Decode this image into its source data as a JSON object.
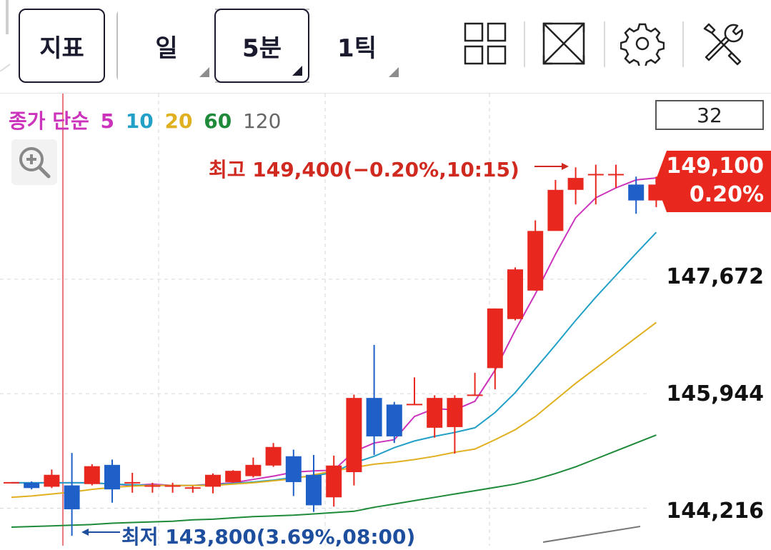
{
  "toolbar": {
    "indicator_label": "지표",
    "periods": [
      {
        "label": "일",
        "selected": false
      },
      {
        "label": "5분",
        "selected": true
      },
      {
        "label": "1틱",
        "selected": false
      }
    ],
    "tools": [
      "grid-layout-icon",
      "expand-icon",
      "gear-icon",
      "tools-icon"
    ]
  },
  "legend": {
    "prefix": "종가 단순",
    "periods": [
      {
        "label": "5",
        "color": "#cc33bb"
      },
      {
        "label": "10",
        "color": "#22a0c8"
      },
      {
        "label": "20",
        "color": "#e0b020"
      },
      {
        "label": "60",
        "color": "#1e8a3a"
      },
      {
        "label": "120",
        "color": "#666666"
      }
    ]
  },
  "count_value": "32",
  "current_price": {
    "price": "149,100",
    "change": "0.20%",
    "color": "#e8281e"
  },
  "annotations": {
    "high": "최고 149,400(−0.20%,10:15)",
    "low": "최저 143,800(3.69%,08:00)"
  },
  "colors": {
    "up": "#e8281e",
    "down": "#1e5fc8",
    "high_text": "#d02a20",
    "low_text": "#1e4f9e"
  },
  "chart_data": {
    "type": "candlestick",
    "y_ticks": [
      147672,
      145944,
      144216
    ],
    "y_tick_labels": [
      "147,672",
      "145,944",
      "144,216"
    ],
    "ylim": [
      143650,
      149600
    ],
    "high": 149400,
    "low": 143800,
    "candles": [
      {
        "o": 144600,
        "c": 144600,
        "h": 144600,
        "l": 144600
      },
      {
        "o": 144600,
        "c": 144520,
        "h": 144620,
        "l": 144500
      },
      {
        "o": 144540,
        "c": 144720,
        "h": 144800,
        "l": 144520
      },
      {
        "o": 144560,
        "c": 144200,
        "h": 145050,
        "l": 143800
      },
      {
        "o": 144580,
        "c": 144850,
        "h": 144880,
        "l": 144560
      },
      {
        "o": 144870,
        "c": 144500,
        "h": 144950,
        "l": 144300
      },
      {
        "o": 144600,
        "c": 144600,
        "h": 144750,
        "l": 144450
      },
      {
        "o": 144550,
        "c": 144550,
        "h": 144600,
        "l": 144450
      },
      {
        "o": 144550,
        "c": 144550,
        "h": 144600,
        "l": 144450
      },
      {
        "o": 144520,
        "c": 144520,
        "h": 144550,
        "l": 144450
      },
      {
        "o": 144540,
        "c": 144720,
        "h": 144740,
        "l": 144440
      },
      {
        "o": 144610,
        "c": 144780,
        "h": 144790,
        "l": 144600
      },
      {
        "o": 144700,
        "c": 144870,
        "h": 144980,
        "l": 144680
      },
      {
        "o": 144860,
        "c": 145140,
        "h": 145200,
        "l": 144840
      },
      {
        "o": 145000,
        "c": 144610,
        "h": 145100,
        "l": 144400
      },
      {
        "o": 144720,
        "c": 144260,
        "h": 145020,
        "l": 144160
      },
      {
        "o": 144380,
        "c": 144860,
        "h": 145010,
        "l": 144240
      },
      {
        "o": 144760,
        "c": 145880,
        "h": 145930,
        "l": 144560
      },
      {
        "o": 145880,
        "c": 145300,
        "h": 146680,
        "l": 145020
      },
      {
        "o": 145780,
        "c": 145300,
        "h": 145820,
        "l": 145200
      },
      {
        "o": 145780,
        "c": 145780,
        "h": 146190,
        "l": 145780
      },
      {
        "o": 145430,
        "c": 145880,
        "h": 145920,
        "l": 145280
      },
      {
        "o": 145440,
        "c": 145880,
        "h": 145920,
        "l": 145040
      },
      {
        "o": 145920,
        "c": 145920,
        "h": 146260,
        "l": 145920
      },
      {
        "o": 146330,
        "c": 147230,
        "h": 147230,
        "l": 146010
      },
      {
        "o": 147070,
        "c": 147820,
        "h": 147850,
        "l": 147050
      },
      {
        "o": 147500,
        "c": 148400,
        "h": 148560,
        "l": 147500
      },
      {
        "o": 148400,
        "c": 149020,
        "h": 149170,
        "l": 148420
      },
      {
        "o": 149020,
        "c": 149200,
        "h": 149360,
        "l": 148800
      },
      {
        "o": 149250,
        "c": 149250,
        "h": 149400,
        "l": 148800
      },
      {
        "o": 149250,
        "c": 149250,
        "h": 149400,
        "l": 149050
      },
      {
        "o": 149100,
        "c": 148860,
        "h": 149220,
        "l": 148660
      },
      {
        "o": 148860,
        "c": 149100,
        "h": 149220,
        "l": 148760
      }
    ],
    "ma": [
      {
        "name": "5",
        "color": "#cc33bb",
        "values": [
          144600,
          144600,
          144600,
          144600,
          144600,
          144580,
          144560,
          144580,
          144560,
          144560,
          144580,
          144600,
          144650,
          144700,
          144760,
          144780,
          144790,
          145070,
          145200,
          145250,
          145600,
          145720,
          145700,
          145830,
          146300,
          146900,
          147450,
          148050,
          148600,
          148900,
          149050,
          149170,
          149200
        ]
      },
      {
        "name": "10",
        "color": "#22a0c8",
        "values": [
          144600,
          144600,
          144600,
          144600,
          144600,
          144580,
          144570,
          144560,
          144560,
          144560,
          144570,
          144590,
          144610,
          144640,
          144680,
          144700,
          144760,
          144900,
          145000,
          145130,
          145230,
          145300,
          145360,
          145430,
          145660,
          145960,
          146320,
          146680,
          147050,
          147400,
          147730,
          148060,
          148380
        ]
      },
      {
        "name": "20",
        "color": "#e0b020",
        "values": [
          144380,
          144400,
          144430,
          144460,
          144500,
          144530,
          144550,
          144560,
          144560,
          144560,
          144560,
          144580,
          144600,
          144630,
          144660,
          144720,
          144780,
          144830,
          144880,
          144910,
          144950,
          145000,
          145060,
          145110,
          145250,
          145400,
          145600,
          145850,
          146100,
          146330,
          146560,
          146790,
          147020
        ]
      },
      {
        "name": "60",
        "color": "#1e8a3a",
        "values": [
          143930,
          143940,
          143950,
          143960,
          143970,
          143990,
          144000,
          144010,
          144020,
          144040,
          144050,
          144070,
          144090,
          144100,
          144110,
          144130,
          144150,
          144170,
          144230,
          144280,
          144330,
          144380,
          144430,
          144480,
          144530,
          144580,
          144650,
          144740,
          144840,
          144960,
          145080,
          145200,
          145320
        ]
      }
    ]
  }
}
